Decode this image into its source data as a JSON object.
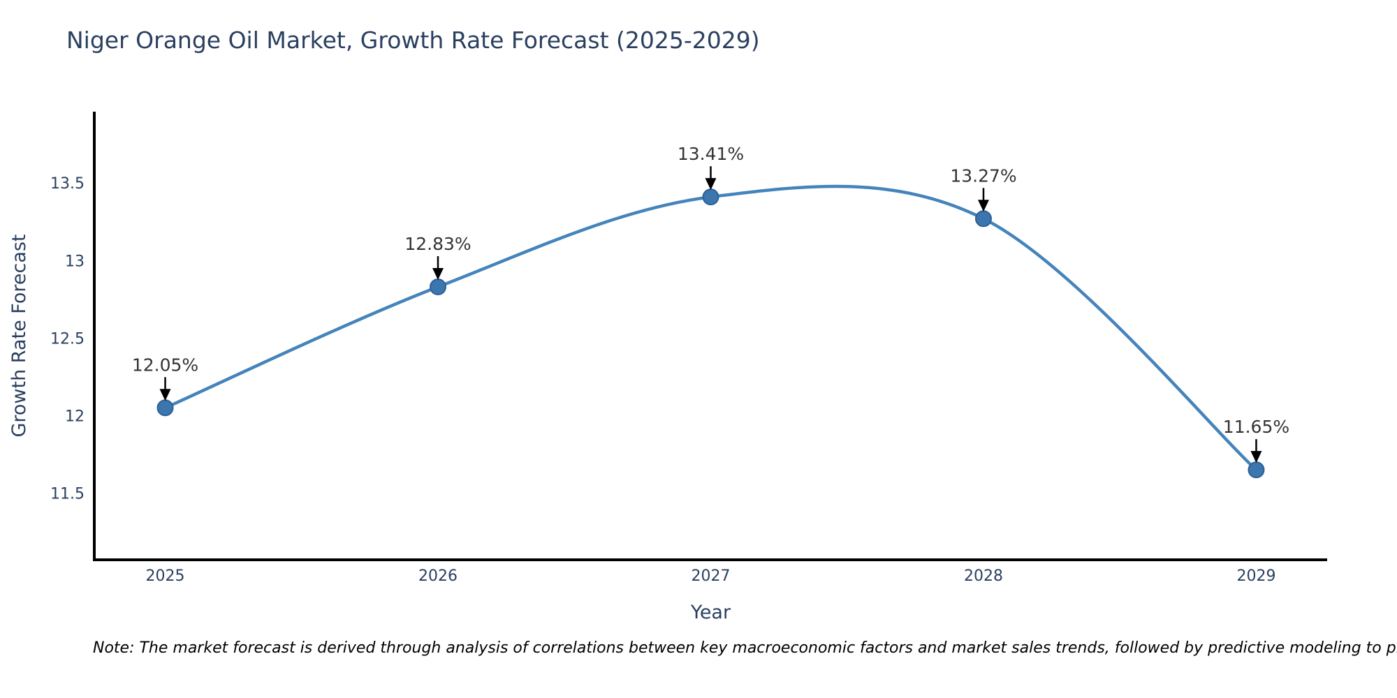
{
  "figure": {
    "note": "Note: The market forecast is derived through analysis of correlations between key macroeconomic factors and market sales trends, followed by predictive modeling to project future sal"
  },
  "chart_data": {
    "type": "line",
    "title": "Niger Orange Oil Market, Growth Rate Forecast (2025-2029)",
    "xlabel": "Year",
    "ylabel": "Growth Rate Forecast",
    "x": [
      2025,
      2026,
      2027,
      2028,
      2029
    ],
    "values": [
      12.05,
      12.83,
      13.41,
      13.27,
      11.65
    ],
    "point_labels": [
      "12.05%",
      "12.83%",
      "13.41%",
      "13.27%",
      "11.65%"
    ],
    "x_ticks": [
      2025,
      2026,
      2027,
      2028,
      2029
    ],
    "y_ticks": [
      11.5,
      12,
      12.5,
      13,
      13.5
    ],
    "xlim": [
      2024.74,
      2029.26
    ],
    "ylim": [
      11.07,
      13.96
    ],
    "line_shape": "spline",
    "grid": false,
    "legend": false,
    "colors": {
      "line": "#4484bb",
      "marker": "#3b76af",
      "marker_edge": "#2e6096",
      "axis": "#000000",
      "tick_text": "#2a3f5f",
      "axis_title_text": "#2a3f5f",
      "title_text": "#2a3f5f",
      "annotation_text": "#333333",
      "arrow": "#000000"
    }
  }
}
